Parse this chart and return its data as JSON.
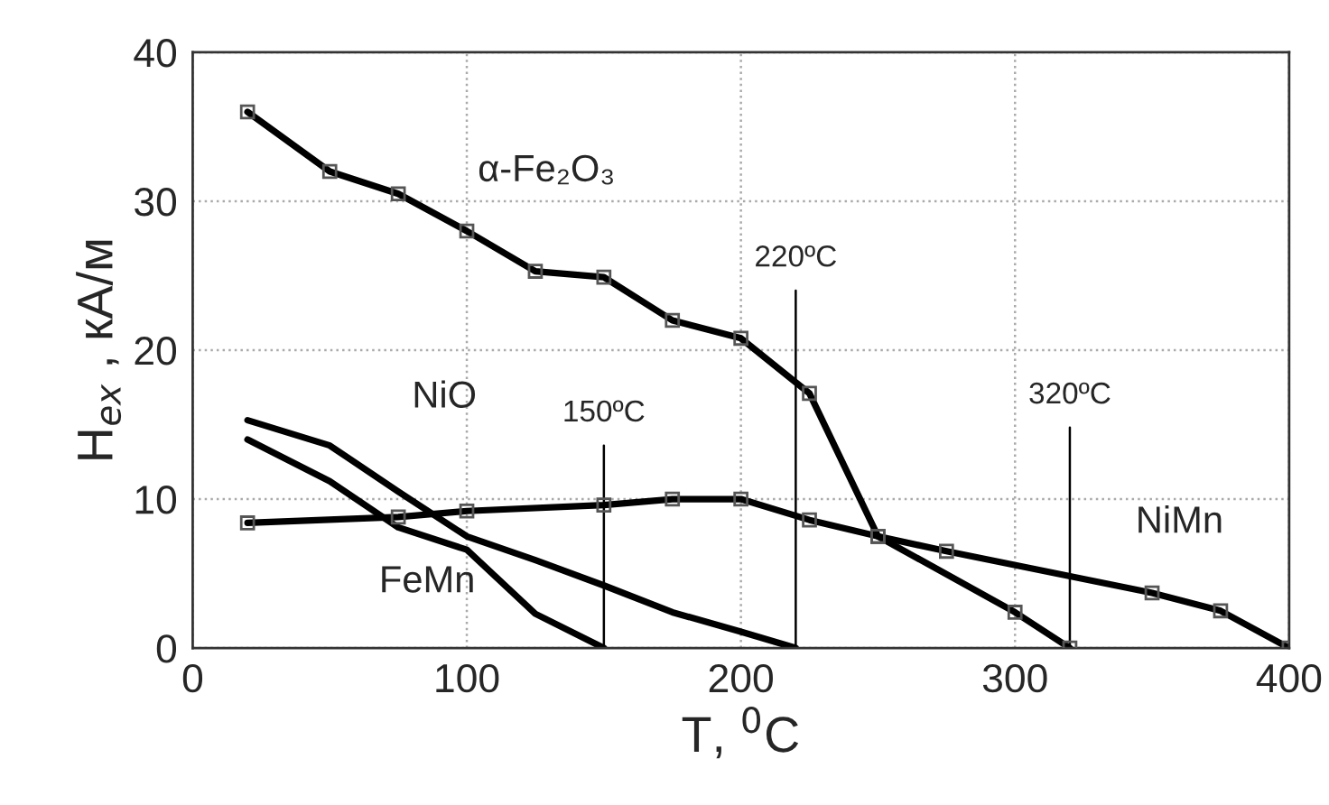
{
  "chart_data": {
    "type": "line",
    "xlabel": "T, $^{0}$C",
    "ylabel": "H$_{ex}$ , кА/м",
    "xlim": [
      0,
      400
    ],
    "ylim": [
      0,
      40
    ],
    "xticks": [
      0,
      100,
      200,
      300,
      400
    ],
    "yticks": [
      0,
      10,
      20,
      30,
      40
    ],
    "grid": true,
    "legend": false,
    "line_style": "solid",
    "series": [
      {
        "name": "α-Fe₂O₃",
        "color": "#000000",
        "marker": "square",
        "x": [
          20,
          50,
          75,
          100,
          125,
          150,
          175,
          200,
          225,
          250,
          300,
          320
        ],
        "values": [
          36,
          32,
          30.5,
          28,
          25.3,
          24.9,
          22,
          20.8,
          17.1,
          7.5,
          2.4,
          0
        ]
      },
      {
        "name": "NiMn",
        "color": "#000000",
        "marker": "square",
        "x": [
          20,
          75,
          100,
          150,
          175,
          200,
          225,
          250,
          275,
          350,
          375,
          400
        ],
        "values": [
          8.4,
          8.8,
          9.2,
          9.6,
          10,
          10,
          8.6,
          7.5,
          6.5,
          3.7,
          2.5,
          0
        ]
      },
      {
        "name": "NiO",
        "color": "#000000",
        "marker": "none",
        "x": [
          20,
          50,
          75,
          100,
          125,
          150,
          175,
          200,
          220
        ],
        "values": [
          15.3,
          13.6,
          10.5,
          7.5,
          5.9,
          4.2,
          2.4,
          1.1,
          0
        ]
      },
      {
        "name": "FeMn",
        "color": "#000000",
        "marker": "none",
        "x": [
          20,
          50,
          75,
          100,
          125,
          150
        ],
        "values": [
          14,
          11.2,
          8.1,
          6.6,
          2.3,
          0
        ]
      }
    ],
    "ref_lines": [
      {
        "axis": "x",
        "value": 150,
        "label": "150ºC",
        "color": "#000000"
      },
      {
        "axis": "x",
        "value": 220,
        "label": "220ºC",
        "color": "#000000"
      },
      {
        "axis": "x",
        "value": 320,
        "label": "320ºC",
        "color": "#000000"
      }
    ]
  }
}
